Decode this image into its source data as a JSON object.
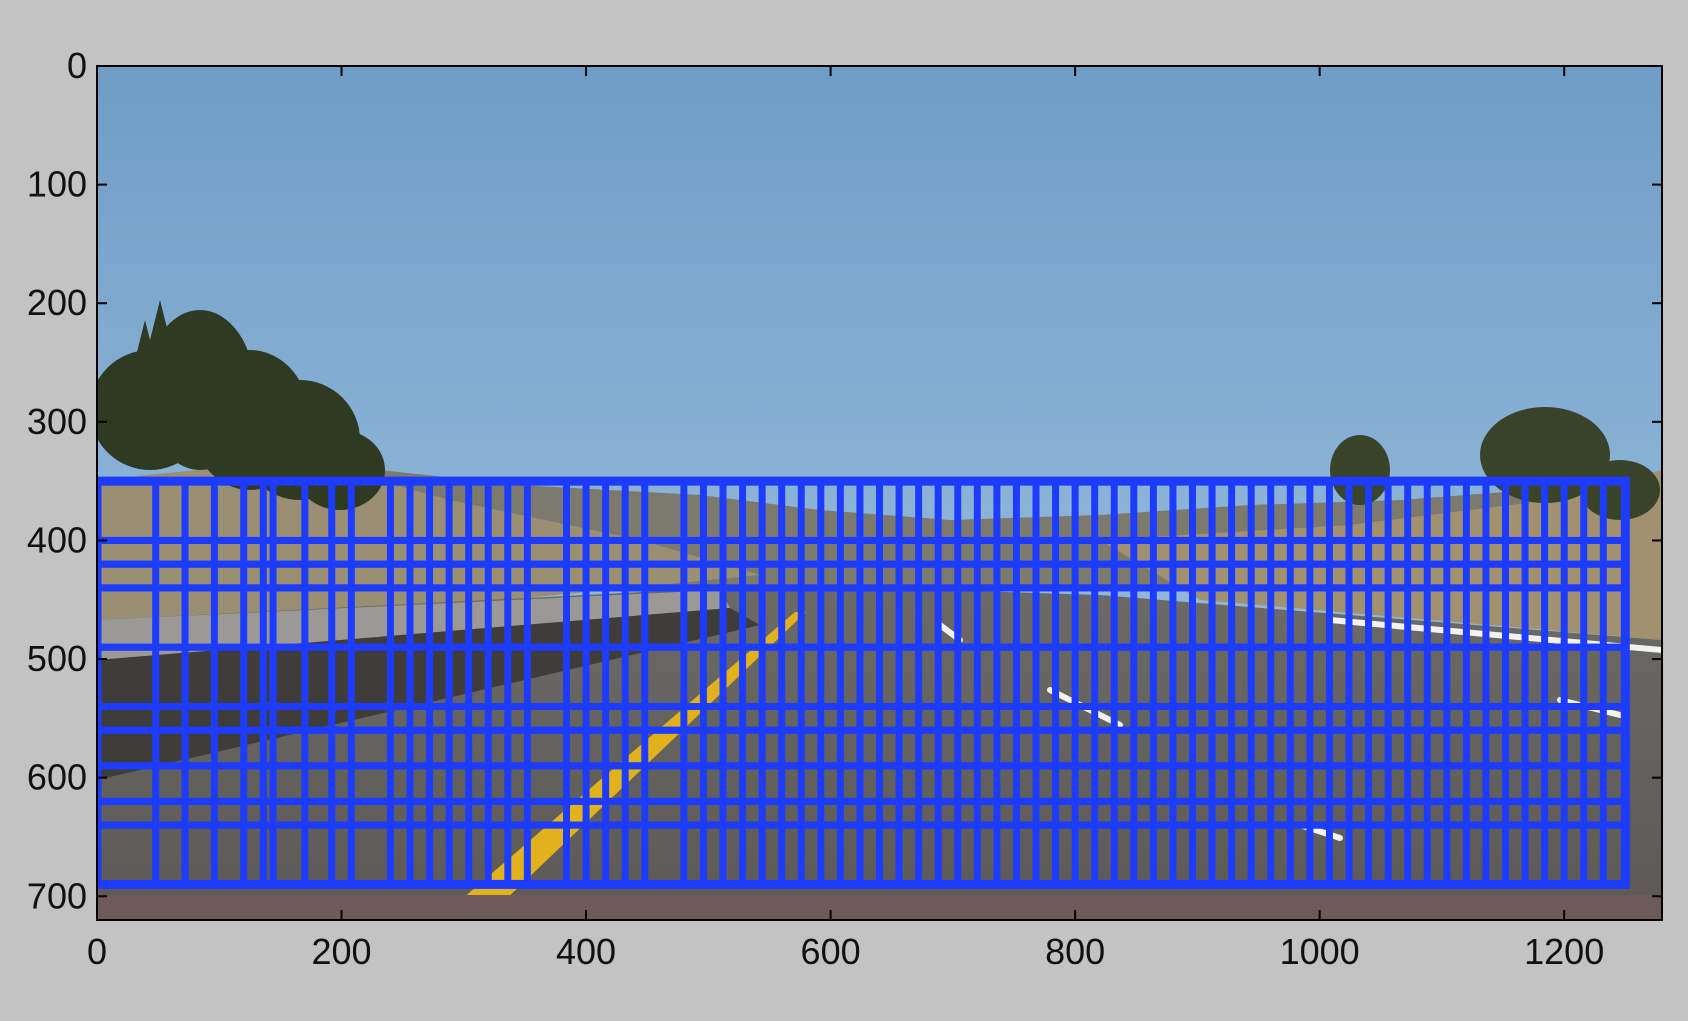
{
  "chart_data": {
    "type": "image",
    "description_note": "",
    "xlim": [
      0,
      1280
    ],
    "ylim": [
      720,
      0
    ],
    "x_ticks": [
      0,
      200,
      400,
      600,
      800,
      1000,
      1200
    ],
    "y_ticks": [
      0,
      100,
      200,
      300,
      400,
      500,
      600,
      700
    ],
    "x_tick_labels": [
      "0",
      "200",
      "400",
      "600",
      "800",
      "1000",
      "1200"
    ],
    "y_tick_labels": [
      "0",
      "100",
      "200",
      "300",
      "400",
      "500",
      "600",
      "700"
    ],
    "box_color": "#1e3cff",
    "search_region": {
      "x_start": 0,
      "x_end": 1250,
      "y_start": 350,
      "y_end": 690
    },
    "window_rows": [
      {
        "y_top": 350,
        "y_bottom": 400
      },
      {
        "y_top": 350,
        "y_bottom": 420
      },
      {
        "y_top": 350,
        "y_bottom": 440
      },
      {
        "y_top": 400,
        "y_bottom": 490
      },
      {
        "y_top": 420,
        "y_bottom": 540
      },
      {
        "y_top": 440,
        "y_bottom": 560
      },
      {
        "y_top": 490,
        "y_bottom": 590
      },
      {
        "y_top": 540,
        "y_bottom": 620
      },
      {
        "y_top": 560,
        "y_bottom": 640
      },
      {
        "y_top": 590,
        "y_bottom": 690
      },
      {
        "y_top": 620,
        "y_bottom": 690
      },
      {
        "y_top": 640,
        "y_bottom": 690
      }
    ],
    "window_columns": [
      0,
      48,
      72,
      96,
      120,
      136,
      144,
      170,
      192,
      208,
      240,
      256,
      272,
      288,
      304,
      320,
      336,
      352,
      384,
      400,
      416,
      432,
      448,
      480,
      496,
      512,
      528,
      544,
      560,
      576,
      592,
      608,
      624,
      640,
      656,
      672,
      688,
      704,
      720,
      736,
      752,
      768,
      784,
      800,
      816,
      832,
      848,
      864,
      880,
      896,
      912,
      928,
      944,
      960,
      976,
      992,
      1008,
      1024,
      1040,
      1056,
      1072,
      1088,
      1104,
      1120,
      1136,
      1152,
      1168,
      1184,
      1200,
      1216,
      1232,
      1250
    ]
  }
}
